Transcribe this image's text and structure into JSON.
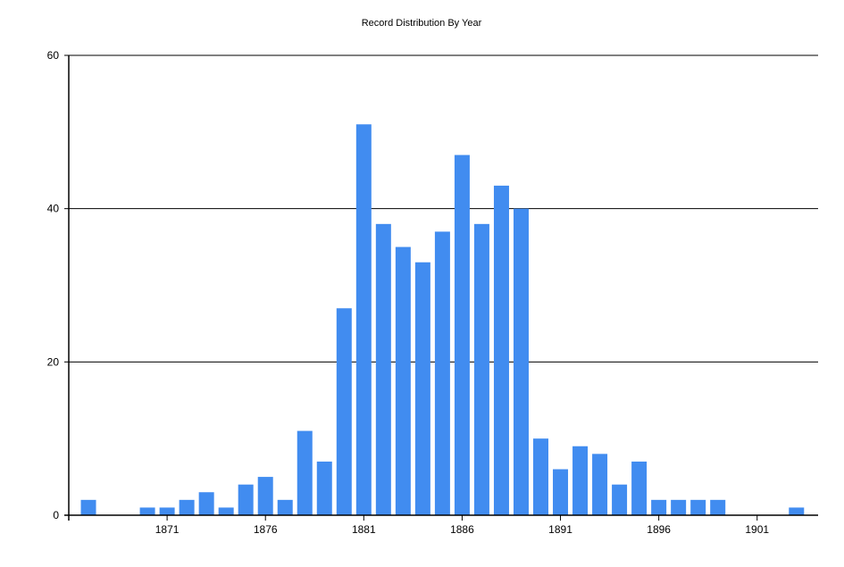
{
  "chart_data": {
    "type": "bar",
    "title": "Record Distribution By Year",
    "xlabel": "",
    "ylabel": "",
    "x": [
      1867,
      1868,
      1869,
      1870,
      1871,
      1872,
      1873,
      1874,
      1875,
      1876,
      1877,
      1878,
      1879,
      1880,
      1881,
      1882,
      1883,
      1884,
      1885,
      1886,
      1887,
      1888,
      1889,
      1890,
      1891,
      1892,
      1893,
      1894,
      1895,
      1896,
      1897,
      1898,
      1899,
      1900,
      1901,
      1902,
      1903
    ],
    "values": [
      2,
      0,
      0,
      1,
      1,
      2,
      3,
      1,
      4,
      5,
      2,
      11,
      7,
      27,
      51,
      38,
      35,
      33,
      37,
      47,
      38,
      43,
      40,
      10,
      6,
      9,
      8,
      4,
      7,
      2,
      2,
      2,
      2,
      0,
      0,
      0,
      1
    ],
    "xlim": [
      1866,
      1904.1
    ],
    "ylim": [
      0,
      60
    ],
    "x_ticks": [
      "1871",
      "1876",
      "1881",
      "1886",
      "1891",
      "1896",
      "1901"
    ],
    "y_ticks": [
      "0",
      "20",
      "40",
      "60"
    ],
    "grid": "horizontal",
    "legend": "none",
    "bar_color": "#418CF0"
  }
}
